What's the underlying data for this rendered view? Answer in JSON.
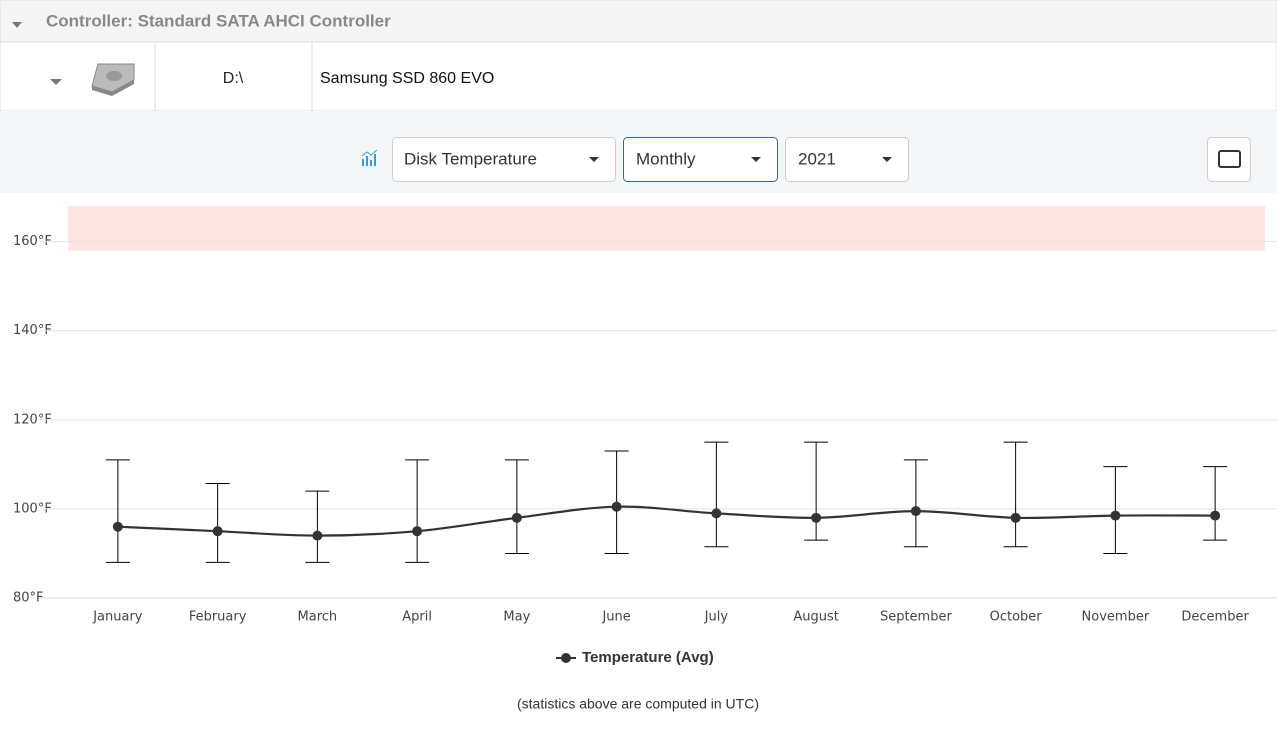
{
  "controller": {
    "title": "Controller: Standard SATA AHCI Controller"
  },
  "disk": {
    "drive": "D:\\",
    "model": "Samsung SSD 860 EVO"
  },
  "toolbar": {
    "metric": "Disk Temperature",
    "period": "Monthly",
    "year": "2021"
  },
  "chart_data": {
    "type": "line",
    "categories": [
      "January",
      "February",
      "March",
      "April",
      "May",
      "June",
      "July",
      "August",
      "September",
      "October",
      "November",
      "December"
    ],
    "series": [
      {
        "name": "Temperature (Avg)",
        "color": "#333333",
        "values": [
          96,
          95,
          94,
          95,
          98,
          100.5,
          99,
          98,
          99.5,
          98,
          98.5,
          98.5
        ],
        "min": [
          88,
          88,
          88,
          88,
          90,
          90,
          91.5,
          93,
          91.5,
          91.5,
          90,
          93
        ],
        "max": [
          111,
          105.7,
          104,
          111,
          111,
          113,
          115,
          115,
          111,
          115,
          109.5,
          109.5
        ]
      }
    ],
    "ylim": [
      80,
      168
    ],
    "yticks": [
      {
        "value": 80,
        "label": "80°F"
      },
      {
        "value": 100,
        "label": "100°F"
      },
      {
        "value": 120,
        "label": "120°F"
      },
      {
        "value": 140,
        "label": "140°F"
      },
      {
        "value": 160,
        "label": "160°F"
      }
    ],
    "danger_band": [
      158,
      168
    ],
    "danger_color": "#ffe4e1",
    "grid": true
  },
  "footnote": "(statistics above are computed in UTC)"
}
